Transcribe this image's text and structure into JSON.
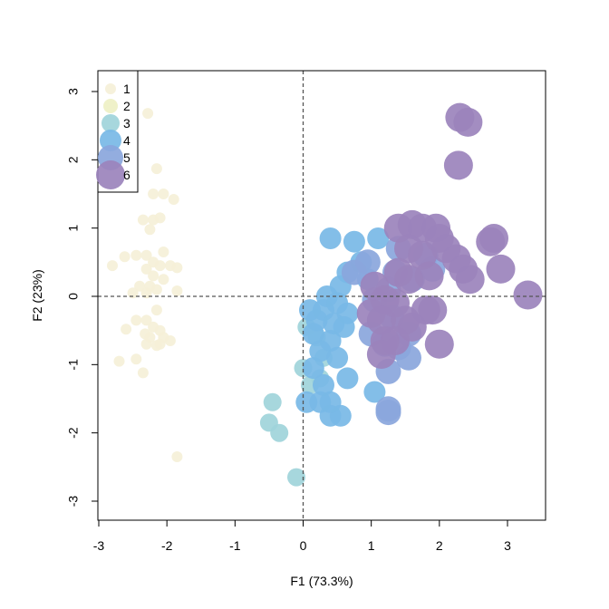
{
  "chart_data": {
    "type": "scatter",
    "title": "",
    "xlabel": "F1 (73.3%)",
    "ylabel": "F2 (23%)",
    "xlim": [
      -3.0,
      3.55
    ],
    "ylim": [
      -3.3,
      3.35
    ],
    "xticks": [
      -3,
      -2,
      -1,
      0,
      1,
      2,
      3
    ],
    "yticks": [
      -3,
      -2,
      -1,
      0,
      1,
      2,
      3
    ],
    "reference_lines": {
      "x": 0,
      "y": 0,
      "style": "dashed"
    },
    "grid": false,
    "legend_position": "top-left",
    "series": [
      {
        "name": "1",
        "color": "#f5f0d8",
        "point_size": 1,
        "points": [
          [
            -2.28,
            2.68
          ],
          [
            -2.15,
            1.87
          ],
          [
            -2.2,
            1.5
          ],
          [
            -2.05,
            1.5
          ],
          [
            -1.9,
            1.42
          ],
          [
            -2.35,
            1.12
          ],
          [
            -2.2,
            1.12
          ],
          [
            -2.1,
            1.15
          ],
          [
            -2.25,
            0.98
          ],
          [
            -2.45,
            0.6
          ],
          [
            -2.3,
            0.6
          ],
          [
            -2.05,
            0.65
          ],
          [
            -2.2,
            0.5
          ],
          [
            -2.62,
            0.58
          ],
          [
            -2.8,
            0.45
          ],
          [
            -2.3,
            0.4
          ],
          [
            -2.1,
            0.45
          ],
          [
            -1.95,
            0.45
          ],
          [
            -1.85,
            0.42
          ],
          [
            -2.2,
            0.3
          ],
          [
            -2.05,
            0.25
          ],
          [
            -2.4,
            0.15
          ],
          [
            -2.25,
            0.15
          ],
          [
            -2.15,
            0.1
          ],
          [
            -2.5,
            0.05
          ],
          [
            -2.3,
            0.05
          ],
          [
            -1.85,
            0.08
          ],
          [
            -2.15,
            -0.2
          ],
          [
            -2.45,
            -0.35
          ],
          [
            -2.3,
            -0.35
          ],
          [
            -2.6,
            -0.48
          ],
          [
            -2.2,
            -0.45
          ],
          [
            -2.1,
            -0.5
          ],
          [
            -2.32,
            -0.55
          ],
          [
            -2.25,
            -0.6
          ],
          [
            -2.05,
            -0.6
          ],
          [
            -1.95,
            -0.65
          ],
          [
            -2.3,
            -0.7
          ],
          [
            -2.15,
            -0.72
          ],
          [
            -2.1,
            -0.7
          ],
          [
            -2.7,
            -0.95
          ],
          [
            -2.45,
            -0.92
          ],
          [
            -2.35,
            -1.12
          ],
          [
            -1.85,
            -2.35
          ]
        ]
      },
      {
        "name": "2",
        "color": "#eef0c4",
        "point_size": 2,
        "points": []
      },
      {
        "name": "3",
        "color": "#9fd4da",
        "point_size": 3,
        "points": [
          [
            -0.45,
            -1.55
          ],
          [
            -0.5,
            -1.85
          ],
          [
            -0.35,
            -2.0
          ],
          [
            -0.1,
            -2.65
          ],
          [
            0.0,
            -1.05
          ],
          [
            0.05,
            -0.45
          ],
          [
            0.2,
            -0.6
          ],
          [
            0.3,
            -0.9
          ],
          [
            0.25,
            -1.2
          ],
          [
            0.1,
            -1.3
          ]
        ]
      },
      {
        "name": "4",
        "color": "#78b8e6",
        "point_size": 4,
        "points": [
          [
            0.4,
            0.85
          ],
          [
            0.75,
            0.8
          ],
          [
            1.1,
            0.85
          ],
          [
            0.85,
            0.5
          ],
          [
            0.65,
            0.35
          ],
          [
            0.55,
            0.15
          ],
          [
            0.35,
            0.0
          ],
          [
            0.1,
            -0.2
          ],
          [
            0.3,
            -0.2
          ],
          [
            0.5,
            -0.1
          ],
          [
            0.65,
            -0.25
          ],
          [
            0.2,
            -0.35
          ],
          [
            0.45,
            -0.4
          ],
          [
            0.6,
            -0.45
          ],
          [
            0.15,
            -0.55
          ],
          [
            0.4,
            -0.65
          ],
          [
            0.25,
            -0.8
          ],
          [
            0.5,
            -0.9
          ],
          [
            0.15,
            -1.05
          ],
          [
            0.3,
            -1.3
          ],
          [
            0.05,
            -1.55
          ],
          [
            0.25,
            -1.55
          ],
          [
            0.4,
            -1.75
          ],
          [
            0.55,
            -1.75
          ],
          [
            0.65,
            -1.2
          ],
          [
            0.4,
            -1.55
          ],
          [
            1.05,
            -1.4
          ],
          [
            0.95,
            0.25
          ]
        ]
      },
      {
        "name": "5",
        "color": "#8aa6dc",
        "point_size": 5,
        "points": [
          [
            1.4,
            0.7
          ],
          [
            1.35,
            0.35
          ],
          [
            1.25,
            0.1
          ],
          [
            1.05,
            -0.05
          ],
          [
            1.3,
            -0.3
          ],
          [
            1.55,
            -0.55
          ],
          [
            1.0,
            -0.55
          ],
          [
            1.2,
            -0.7
          ],
          [
            1.4,
            -0.75
          ],
          [
            1.25,
            -1.1
          ],
          [
            1.55,
            -0.9
          ],
          [
            1.25,
            -1.65
          ],
          [
            1.25,
            -1.7
          ],
          [
            1.6,
            0.25
          ],
          [
            1.8,
            0.6
          ],
          [
            1.9,
            0.4
          ],
          [
            0.75,
            0.35
          ],
          [
            0.95,
            0.5
          ]
        ]
      },
      {
        "name": "6",
        "color": "#9b83bc",
        "point_size": 6,
        "points": [
          [
            1.4,
            1.0
          ],
          [
            1.6,
            1.05
          ],
          [
            1.75,
            1.0
          ],
          [
            1.95,
            1.0
          ],
          [
            1.55,
            0.7
          ],
          [
            1.75,
            0.6
          ],
          [
            2.0,
            0.85
          ],
          [
            2.1,
            0.7
          ],
          [
            2.25,
            0.55
          ],
          [
            1.85,
            0.3
          ],
          [
            1.55,
            0.25
          ],
          [
            1.4,
            0.35
          ],
          [
            1.05,
            0.15
          ],
          [
            1.2,
            -0.05
          ],
          [
            1.35,
            -0.1
          ],
          [
            1.0,
            -0.25
          ],
          [
            1.15,
            -0.35
          ],
          [
            1.5,
            -0.35
          ],
          [
            1.9,
            -0.2
          ],
          [
            1.8,
            -0.2
          ],
          [
            1.2,
            -0.65
          ],
          [
            1.35,
            -0.65
          ],
          [
            2.0,
            -0.7
          ],
          [
            1.6,
            -0.45
          ],
          [
            1.15,
            -0.85
          ],
          [
            2.3,
            2.62
          ],
          [
            2.42,
            2.55
          ],
          [
            2.28,
            1.92
          ],
          [
            2.8,
            0.85
          ],
          [
            2.75,
            0.8
          ],
          [
            2.9,
            0.4
          ],
          [
            3.3,
            0.02
          ],
          [
            2.45,
            0.25
          ],
          [
            2.35,
            0.4
          ]
        ]
      }
    ]
  }
}
